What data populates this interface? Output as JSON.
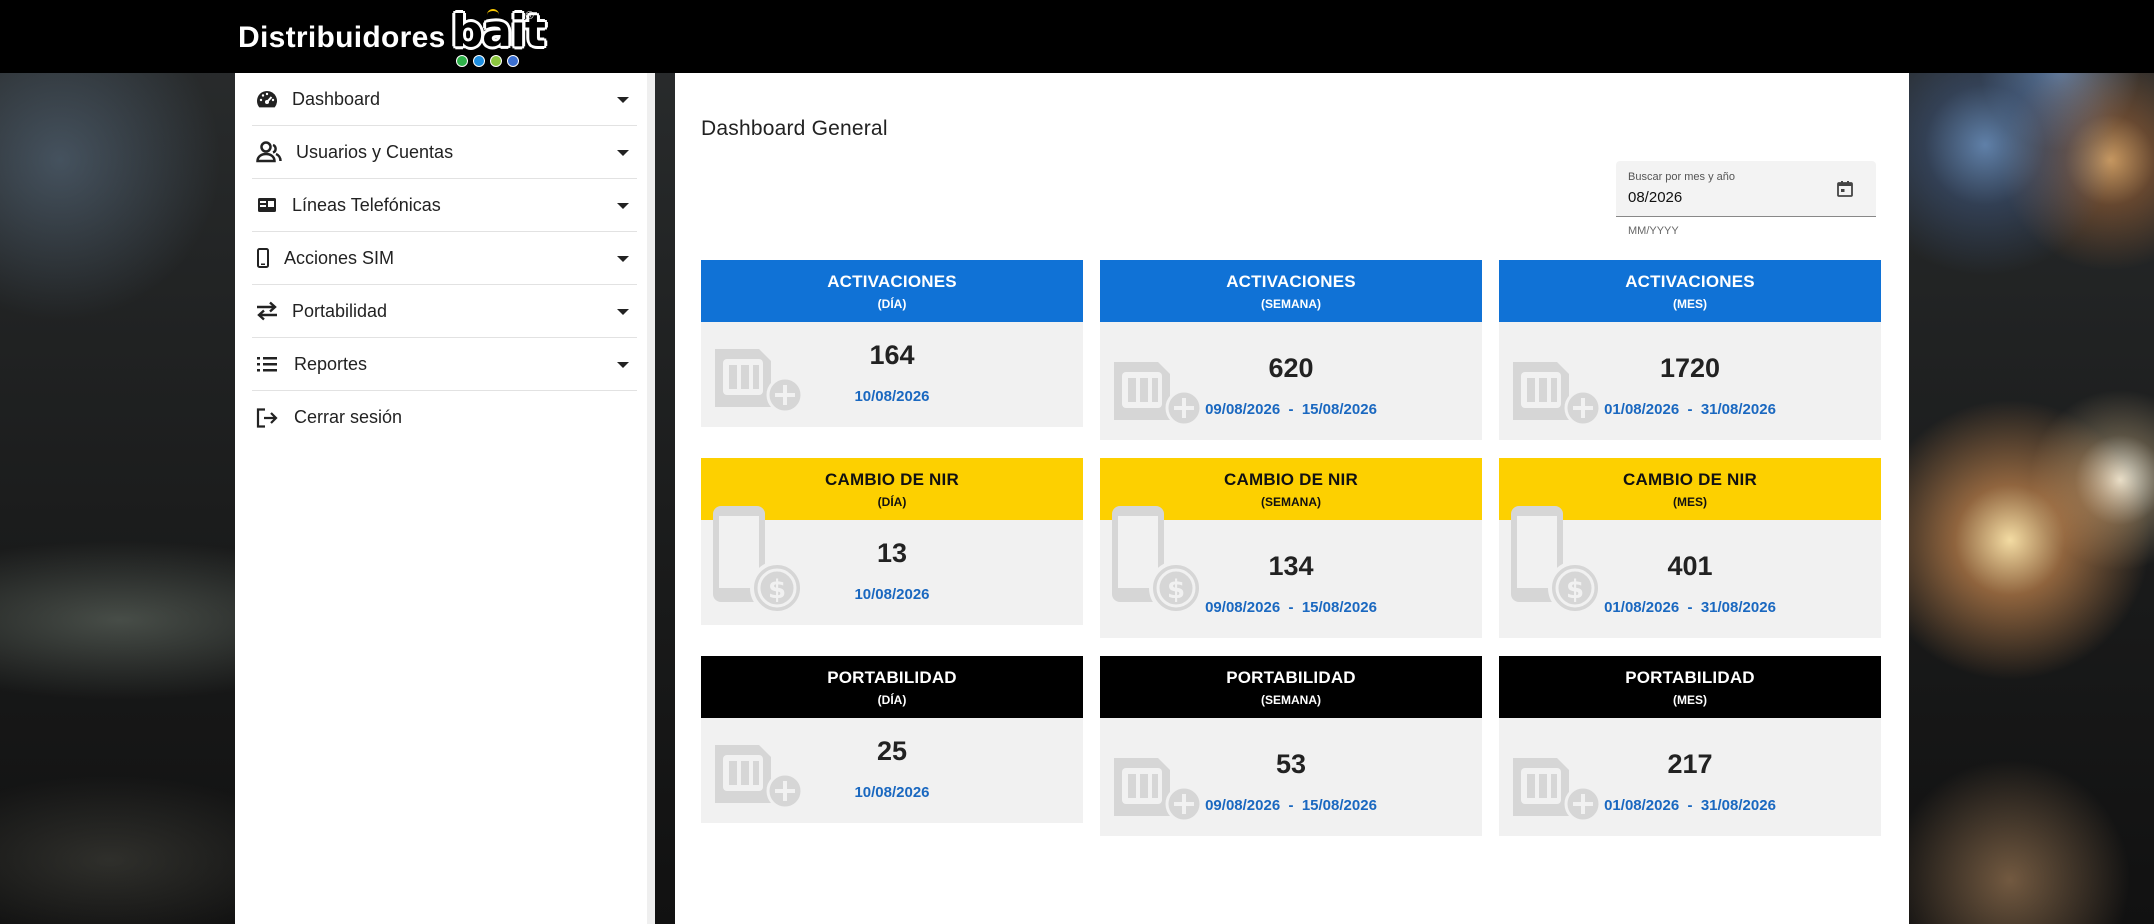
{
  "header": {
    "brand_text": "Distribuidores",
    "logo_word": "bait",
    "logo_reg": "®",
    "logo_dot_colors": [
      "#2fb24a",
      "#1f8fe0",
      "#8cc63f",
      "#3b6fd1"
    ]
  },
  "sidebar": {
    "items": [
      {
        "label": "Dashboard",
        "icon": "speedometer-icon",
        "has_caret": true
      },
      {
        "label": "Usuarios y Cuentas",
        "icon": "users-icon",
        "has_caret": true
      },
      {
        "label": "Líneas Telefónicas",
        "icon": "id-card-icon",
        "has_caret": true
      },
      {
        "label": "Acciones SIM",
        "icon": "mobile-phone-icon",
        "has_caret": true
      },
      {
        "label": "Portabilidad",
        "icon": "transfer-arrows-icon",
        "has_caret": true
      },
      {
        "label": "Reportes",
        "icon": "list-icon",
        "has_caret": true
      },
      {
        "label": "Cerrar sesión",
        "icon": "logout-icon",
        "has_caret": false
      }
    ]
  },
  "main": {
    "title": "Dashboard General",
    "date_search": {
      "label": "Buscar por mes y año",
      "value": "08/2026",
      "hint": "MM/YYYY",
      "icon": "calendar-icon"
    },
    "cards": [
      {
        "title": "ACTIVACIONES",
        "period": "(DÍA)",
        "value": "164",
        "date_range": "10/08/2026",
        "header_color": "#1072d6",
        "icon": "sim-card-add-icon"
      },
      {
        "title": "ACTIVACIONES",
        "period": "(SEMANA)",
        "value": "620",
        "date_range": "09/08/2026  -  15/08/2026",
        "header_color": "#1072d6",
        "icon": "sim-card-add-icon"
      },
      {
        "title": "ACTIVACIONES",
        "period": "(MES)",
        "value": "1720",
        "date_range": "01/08/2026  -  31/08/2026",
        "header_color": "#1072d6",
        "icon": "sim-card-add-icon"
      },
      {
        "title": "CAMBIO DE NIR",
        "period": "(DÍA)",
        "value": "13",
        "date_range": "10/08/2026",
        "header_color": "#fdd000",
        "icon": "phone-dollar-icon"
      },
      {
        "title": "CAMBIO DE NIR",
        "period": "(SEMANA)",
        "value": "134",
        "date_range": "09/08/2026  -  15/08/2026",
        "header_color": "#fdd000",
        "icon": "phone-dollar-icon"
      },
      {
        "title": "CAMBIO DE NIR",
        "period": "(MES)",
        "value": "401",
        "date_range": "01/08/2026  -  31/08/2026",
        "header_color": "#fdd000",
        "icon": "phone-dollar-icon"
      },
      {
        "title": "PORTABILIDAD",
        "period": "(DÍA)",
        "value": "25",
        "date_range": "10/08/2026",
        "header_color": "#000000",
        "icon": "sim-card-add-icon"
      },
      {
        "title": "PORTABILIDAD",
        "period": "(SEMANA)",
        "value": "53",
        "date_range": "09/08/2026  -  15/08/2026",
        "header_color": "#000000",
        "icon": "sim-card-add-icon"
      },
      {
        "title": "PORTABILIDAD",
        "period": "(MES)",
        "value": "217",
        "date_range": "01/08/2026  -  31/08/2026",
        "header_color": "#000000",
        "icon": "sim-card-add-icon"
      }
    ]
  }
}
